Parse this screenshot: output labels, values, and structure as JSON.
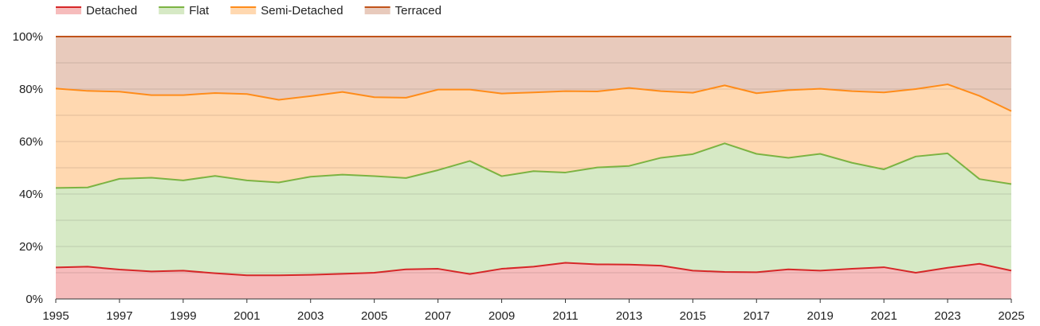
{
  "chart_data": {
    "type": "area",
    "stacked": true,
    "normalized": true,
    "x": [
      1995,
      1996,
      1997,
      1998,
      1999,
      2000,
      2001,
      2002,
      2003,
      2004,
      2005,
      2006,
      2007,
      2008,
      2009,
      2010,
      2011,
      2012,
      2013,
      2014,
      2015,
      2016,
      2017,
      2018,
      2019,
      2020,
      2021,
      2022,
      2023,
      2024,
      2025
    ],
    "x_ticks": [
      "1995",
      "1997",
      "1999",
      "2001",
      "2003",
      "2005",
      "2007",
      "2009",
      "2011",
      "2013",
      "2015",
      "2017",
      "2019",
      "2021",
      "2023",
      "2025"
    ],
    "y_ticks": [
      "0%",
      "20%",
      "40%",
      "60%",
      "80%",
      "100%"
    ],
    "ylim": [
      0,
      100
    ],
    "grid": true,
    "legend_position": "top-left",
    "series": [
      {
        "name": "Detached",
        "line_color": "#d62728",
        "fill_color": "#f6bcbc",
        "values": [
          12,
          12.3,
          11.2,
          10.5,
          10.8,
          9.8,
          9,
          9,
          9.2,
          9.6,
          10,
          11.3,
          11.5,
          9.5,
          11.5,
          12.3,
          13.8,
          13.2,
          13.1,
          12.7,
          10.8,
          10.3,
          10.2,
          11.3,
          10.8,
          11.5,
          12.1,
          10,
          11.9,
          13.4,
          10.8
        ]
      },
      {
        "name": "Flat",
        "line_color": "#7cb342",
        "fill_color": "#d6e9c5",
        "values": [
          30.3,
          30.2,
          34.6,
          35.7,
          34.4,
          37.1,
          36.2,
          35.4,
          37.4,
          37.8,
          36.8,
          34.8,
          37.6,
          43.1,
          35.3,
          36.4,
          34.4,
          36.9,
          37.6,
          41.1,
          44.4,
          49,
          45.1,
          42.5,
          44.5,
          40.4,
          37.3,
          44.3,
          43.6,
          32.3,
          33
        ]
      },
      {
        "name": "Semi-Detached",
        "line_color": "#ff8c1a",
        "fill_color": "#ffd8b0",
        "values": [
          37.9,
          36.8,
          33.2,
          31.5,
          32.5,
          31.6,
          32.9,
          31.5,
          30.7,
          31.5,
          30.1,
          30.6,
          30.7,
          27.2,
          31.5,
          30,
          31,
          29,
          29.7,
          25.4,
          23.4,
          22.1,
          23.1,
          25.8,
          24.8,
          27.3,
          29.3,
          25.7,
          26.3,
          31.7,
          27.8
        ]
      },
      {
        "name": "Terraced",
        "line_color": "#c0531a",
        "fill_color": "#e8cabc",
        "values": [
          19.8,
          20.7,
          21,
          22.3,
          22.3,
          21.5,
          21.9,
          24.1,
          22.7,
          21.1,
          23.1,
          23.3,
          20.2,
          20.2,
          21.7,
          21.3,
          20.8,
          20.9,
          19.6,
          20.8,
          21.4,
          18.6,
          21.6,
          20.4,
          19.9,
          20.8,
          21.3,
          20,
          18.2,
          22.6,
          28.4
        ]
      }
    ]
  }
}
